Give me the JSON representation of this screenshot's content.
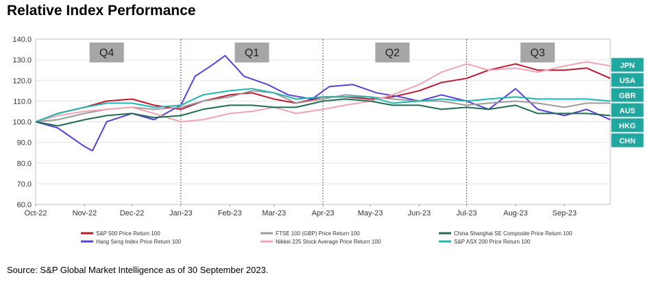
{
  "title": "Relative Index Performance",
  "source": "Source: S&P Global Market Intelligence as of 30 September 2023.",
  "chart_data": {
    "type": "line",
    "title": "Relative Index Performance",
    "xlabel": "",
    "ylabel": "",
    "ylim": [
      60,
      140
    ],
    "yticks": [
      "60.0",
      "70.0",
      "80.0",
      "90.0",
      "100.0",
      "110.0",
      "120.0",
      "130.0",
      "140.0"
    ],
    "xticks": [
      "Oct-22",
      "Nov-22",
      "Dec-22",
      "Jan-23",
      "Feb-23",
      "Mar-23",
      "Apr-23",
      "May-23",
      "Jun-23",
      "Jul-23",
      "Aug-23",
      "Sep-23"
    ],
    "x_range": [
      "2022-10-01",
      "2023-09-30"
    ],
    "quarter_dividers": [
      "2023-01-01",
      "2023-04-01",
      "2023-07-01"
    ],
    "quarter_labels": [
      {
        "label": "Q4",
        "x": "2022-11-15"
      },
      {
        "label": "Q1",
        "x": "2023-02-15"
      },
      {
        "label": "Q2",
        "x": "2023-05-15"
      },
      {
        "label": "Q3",
        "x": "2023-08-15"
      }
    ],
    "country_labels": [
      "JPN",
      "USA",
      "GBR",
      "AUS",
      "HKG",
      "CHN"
    ],
    "legend_placement": "bottom",
    "series": [
      {
        "name": "S&P 500 Price Return 100",
        "color": "#c0152f",
        "x": [
          "2022-10-01",
          "2022-10-15",
          "2022-11-01",
          "2022-11-15",
          "2022-12-01",
          "2022-12-15",
          "2023-01-01",
          "2023-01-15",
          "2023-02-01",
          "2023-02-15",
          "2023-03-01",
          "2023-03-15",
          "2023-04-01",
          "2023-04-15",
          "2023-05-01",
          "2023-05-15",
          "2023-06-01",
          "2023-06-15",
          "2023-07-01",
          "2023-07-15",
          "2023-08-01",
          "2023-08-15",
          "2023-09-01",
          "2023-09-15",
          "2023-09-30"
        ],
        "values": [
          100,
          104,
          107,
          110,
          111,
          108,
          106,
          110,
          113,
          114,
          111,
          109,
          112,
          112,
          111,
          112,
          115,
          119,
          121,
          125,
          128,
          125,
          125,
          126,
          121
        ]
      },
      {
        "name": "Hang Seng Index Price Return 100",
        "color": "#5b3fd6",
        "x": [
          "2022-10-01",
          "2022-10-15",
          "2022-11-01",
          "2022-11-06",
          "2022-11-15",
          "2022-12-01",
          "2022-12-15",
          "2023-01-01",
          "2023-01-10",
          "2023-01-20",
          "2023-01-29",
          "2023-02-10",
          "2023-02-25",
          "2023-03-10",
          "2023-03-25",
          "2023-04-05",
          "2023-04-20",
          "2023-05-05",
          "2023-05-20",
          "2023-06-01",
          "2023-06-15",
          "2023-07-01",
          "2023-07-15",
          "2023-08-01",
          "2023-08-15",
          "2023-09-01",
          "2023-09-15",
          "2023-09-30"
        ],
        "values": [
          100,
          97,
          88,
          86,
          100,
          104,
          101,
          108,
          122,
          127,
          132,
          122,
          118,
          113,
          111,
          117,
          118,
          114,
          112,
          110,
          113,
          110,
          106,
          116,
          106,
          103,
          106,
          101
        ]
      },
      {
        "name": "FTSE 100 (GBP) Price Return 100",
        "color": "#9b9b9b",
        "x": [
          "2022-10-01",
          "2022-10-15",
          "2022-11-01",
          "2022-11-15",
          "2022-12-01",
          "2022-12-15",
          "2023-01-01",
          "2023-01-15",
          "2023-02-01",
          "2023-02-15",
          "2023-03-01",
          "2023-03-15",
          "2023-04-01",
          "2023-04-15",
          "2023-05-01",
          "2023-05-15",
          "2023-06-01",
          "2023-06-15",
          "2023-07-01",
          "2023-07-15",
          "2023-08-01",
          "2023-08-15",
          "2023-09-01",
          "2023-09-15",
          "2023-09-30"
        ],
        "values": [
          100,
          101,
          104,
          106,
          107,
          106,
          107,
          110,
          112,
          115,
          114,
          109,
          111,
          113,
          112,
          111,
          110,
          110,
          108,
          109,
          110,
          109,
          107,
          109,
          109
        ]
      },
      {
        "name": "Nikkei 225 Stock Average Price Return 100",
        "color": "#f2a3b3",
        "x": [
          "2022-10-01",
          "2022-10-15",
          "2022-11-01",
          "2022-11-15",
          "2022-12-01",
          "2022-12-15",
          "2023-01-01",
          "2023-01-15",
          "2023-02-01",
          "2023-02-15",
          "2023-03-01",
          "2023-03-15",
          "2023-04-01",
          "2023-04-15",
          "2023-05-01",
          "2023-05-15",
          "2023-06-01",
          "2023-06-15",
          "2023-07-01",
          "2023-07-15",
          "2023-08-01",
          "2023-08-15",
          "2023-09-01",
          "2023-09-15",
          "2023-09-30"
        ],
        "values": [
          100,
          103,
          105,
          106,
          107,
          104,
          100,
          101,
          104,
          105,
          107,
          104,
          106,
          108,
          110,
          113,
          118,
          124,
          128,
          125,
          126,
          124,
          127,
          129,
          127
        ]
      },
      {
        "name": "China Shanghai SE Composite Price Return 100",
        "color": "#1d6b52",
        "x": [
          "2022-10-01",
          "2022-10-15",
          "2022-11-01",
          "2022-11-15",
          "2022-12-01",
          "2022-12-15",
          "2023-01-01",
          "2023-01-15",
          "2023-02-01",
          "2023-02-15",
          "2023-03-01",
          "2023-03-15",
          "2023-04-01",
          "2023-04-15",
          "2023-05-01",
          "2023-05-15",
          "2023-06-01",
          "2023-06-15",
          "2023-07-01",
          "2023-07-15",
          "2023-08-01",
          "2023-08-15",
          "2023-09-01",
          "2023-09-15",
          "2023-09-30"
        ],
        "values": [
          100,
          98,
          101,
          103,
          104,
          102,
          103,
          106,
          108,
          108,
          107,
          107,
          110,
          111,
          110,
          108,
          108,
          106,
          107,
          106,
          108,
          104,
          104,
          104,
          103
        ]
      },
      {
        "name": "S&P ASX 200 Price Return 100",
        "color": "#1fb5b0",
        "x": [
          "2022-10-01",
          "2022-10-15",
          "2022-11-01",
          "2022-11-15",
          "2022-12-01",
          "2022-12-15",
          "2023-01-01",
          "2023-01-15",
          "2023-02-01",
          "2023-02-15",
          "2023-03-01",
          "2023-03-15",
          "2023-04-01",
          "2023-04-15",
          "2023-05-01",
          "2023-05-15",
          "2023-06-01",
          "2023-06-15",
          "2023-07-01",
          "2023-07-15",
          "2023-08-01",
          "2023-08-15",
          "2023-09-01",
          "2023-09-15",
          "2023-09-30"
        ],
        "values": [
          100,
          104,
          107,
          109,
          109,
          107,
          108,
          113,
          115,
          116,
          114,
          111,
          112,
          112,
          112,
          109,
          110,
          111,
          110,
          111,
          112,
          111,
          111,
          111,
          110
        ]
      }
    ]
  }
}
